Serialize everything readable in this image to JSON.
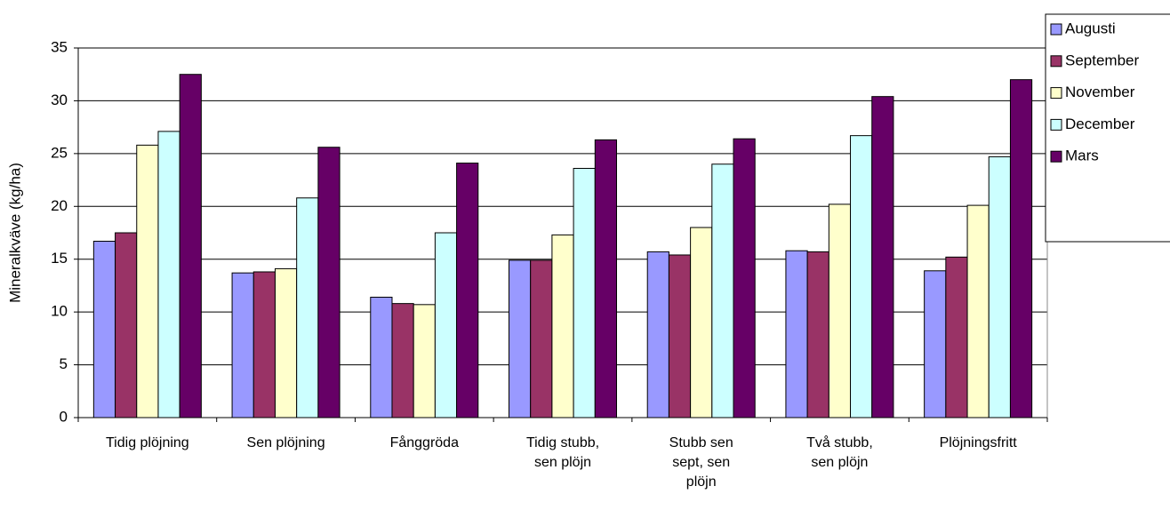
{
  "chart_data": {
    "type": "bar",
    "y_label": "Mineralkväve (kg/ha)",
    "categories": [
      "Tidig plöjning",
      "Sen plöjning",
      "Fånggröda",
      "Tidig stubb, sen plöjn",
      "Stubb sen sept, sen plöjn",
      "Två stubb, sen plöjn",
      "Plöjningsfritt"
    ],
    "series": [
      {
        "name": "Augusti",
        "color": "#9999ff",
        "values": [
          16.7,
          13.7,
          11.4,
          14.9,
          15.7,
          15.8,
          13.9
        ]
      },
      {
        "name": "September",
        "color": "#993366",
        "values": [
          17.5,
          13.8,
          10.8,
          14.9,
          15.4,
          15.7,
          15.2
        ]
      },
      {
        "name": "November",
        "color": "#ffffcc",
        "values": [
          25.8,
          14.1,
          10.7,
          17.3,
          18.0,
          20.2,
          20.1
        ]
      },
      {
        "name": "December",
        "color": "#ccffff",
        "values": [
          27.1,
          20.8,
          17.5,
          23.6,
          24.0,
          26.7,
          24.7
        ]
      },
      {
        "name": "Mars",
        "color": "#660066",
        "values": [
          32.5,
          25.6,
          24.1,
          26.3,
          26.4,
          30.4,
          32.0
        ]
      }
    ],
    "ylim": [
      0,
      35
    ],
    "yticks": [
      0,
      5,
      10,
      15,
      20,
      25,
      30,
      35
    ],
    "grid": true,
    "legend": "top-right"
  }
}
